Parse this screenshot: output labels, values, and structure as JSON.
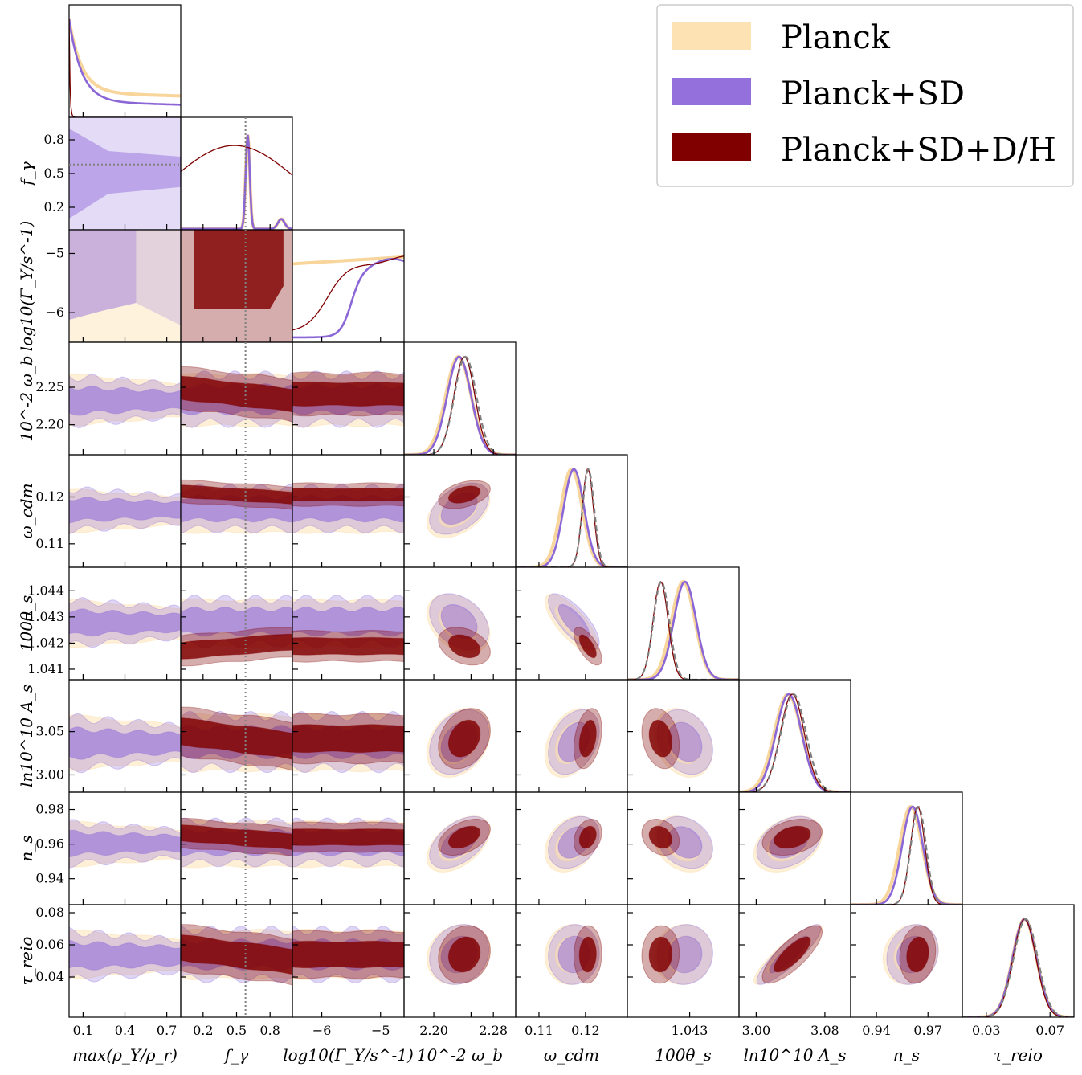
{
  "chart_data": {
    "type": "corner",
    "params": [
      {
        "key": "max_rho",
        "label": "max(ρ_Y/ρ_r)",
        "range": [
          0.0,
          0.8
        ],
        "ticks": [
          0.1,
          0.4,
          0.7
        ],
        "tick_labels": [
          "0.1",
          "0.4",
          "0.7"
        ]
      },
      {
        "key": "f_gamma",
        "label": "f_γ",
        "range": [
          0.0,
          1.0
        ],
        "ticks": [
          0.2,
          0.5,
          0.8
        ],
        "tick_labels": [
          "0.2",
          "0.5",
          "0.8"
        ],
        "y_ticks": [
          0.2,
          0.5,
          0.8
        ],
        "y_tick_labels": [
          "0.2",
          "0.5",
          "0.8"
        ]
      },
      {
        "key": "log_gamma",
        "label": "log10(Γ_Y/s^-1)",
        "range": [
          -6.5,
          -4.6
        ],
        "ticks": [
          -6,
          -5
        ],
        "tick_labels": [
          "−6",
          "−5"
        ]
      },
      {
        "key": "omega_b",
        "label": "10^-2 ω_b",
        "range": [
          2.16,
          2.31
        ],
        "ticks": [
          2.2,
          2.25,
          2.28
        ],
        "tick_labels": [
          "2.20",
          "",
          "2.28"
        ],
        "y_ticks": [
          2.2,
          2.25
        ],
        "y_tick_labels": [
          "2.20",
          "2.25"
        ]
      },
      {
        "key": "omega_cdm",
        "label": "ω_cdm",
        "range": [
          0.105,
          0.129
        ],
        "ticks": [
          0.11,
          0.12
        ],
        "tick_labels": [
          "0.11",
          "0.12"
        ],
        "y_ticks": [
          0.11,
          0.12
        ],
        "y_tick_labels": [
          "0.11",
          "0.12"
        ]
      },
      {
        "key": "theta_s",
        "label": "100θ_s",
        "range": [
          1.0406,
          1.0449
        ],
        "ticks": [
          1.043
        ],
        "tick_labels": [
          "1.043"
        ],
        "y_ticks": [
          1.041,
          1.042,
          1.043,
          1.044
        ],
        "y_tick_labels": [
          "1.041",
          "1.042",
          "1.043",
          "1.044"
        ]
      },
      {
        "key": "ln_As",
        "label": "ln10^10 A_s",
        "range": [
          2.98,
          3.11
        ],
        "ticks": [
          3.0,
          3.08
        ],
        "tick_labels": [
          "3.00",
          "3.08"
        ],
        "y_ticks": [
          3.0,
          3.05
        ],
        "y_tick_labels": [
          "3.00",
          "3.05"
        ]
      },
      {
        "key": "n_s",
        "label": "n_s",
        "range": [
          0.925,
          0.99
        ],
        "ticks": [
          0.94,
          0.97
        ],
        "tick_labels": [
          "0.94",
          "0.97"
        ],
        "y_ticks": [
          0.94,
          0.96,
          0.98
        ],
        "y_tick_labels": [
          "0.94",
          "0.96",
          "0.98"
        ]
      },
      {
        "key": "tau",
        "label": "τ_reio",
        "range": [
          0.015,
          0.085
        ],
        "ticks": [
          0.03,
          0.07
        ],
        "tick_labels": [
          "0.03",
          "0.07"
        ],
        "y_ticks": [
          0.04,
          0.06,
          0.08
        ],
        "y_tick_labels": [
          "0.04",
          "0.06",
          "0.08"
        ]
      }
    ],
    "series": [
      {
        "name": "Planck",
        "color": "#fde3b4",
        "line": "#f8d59a",
        "mean": {
          "max_rho": 0.4,
          "f_gamma": 0.5,
          "log_gamma": -5.4,
          "omega_b": 2.233,
          "omega_cdm": 0.117,
          "theta_s": 1.04275,
          "ln_As": 3.037,
          "n_s": 0.96,
          "tau": 0.054
        },
        "sigma": {
          "omega_b": 0.017,
          "omega_cdm": 0.0023,
          "theta_s": 0.00045,
          "ln_As": 0.016,
          "n_s": 0.0065,
          "tau": 0.0075
        }
      },
      {
        "name": "Planck+SD",
        "color": "#9370db",
        "line": "#8a66d6",
        "mean": {
          "max_rho": 0.4,
          "f_gamma": 0.6,
          "log_gamma": -5.3,
          "omega_b": 2.234,
          "omega_cdm": 0.1175,
          "theta_s": 1.04282,
          "ln_As": 3.038,
          "n_s": 0.961,
          "tau": 0.054
        },
        "sigma": {
          "omega_b": 0.016,
          "omega_cdm": 0.0022,
          "theta_s": 0.00043,
          "ln_As": 0.015,
          "n_s": 0.006,
          "tau": 0.0075
        }
      },
      {
        "name": "Planck+SD+D/H",
        "color": "#800000",
        "line": "#800000",
        "mean": {
          "max_rho": 0.05,
          "f_gamma": 0.55,
          "log_gamma": -5.4,
          "omega_b": 2.241,
          "omega_cdm": 0.1205,
          "theta_s": 1.04188,
          "ln_As": 3.042,
          "n_s": 0.964,
          "tau": 0.054
        },
        "sigma": {
          "omega_b": 0.014,
          "omega_cdm": 0.0012,
          "theta_s": 0.00029,
          "ln_As": 0.014,
          "n_s": 0.0042,
          "tau": 0.0072
        }
      }
    ],
    "reference_line": {
      "param": "f_gamma",
      "value": 0.58,
      "style": "dotted",
      "color": "#808080"
    },
    "legend_position": "top-right",
    "grid": false
  }
}
